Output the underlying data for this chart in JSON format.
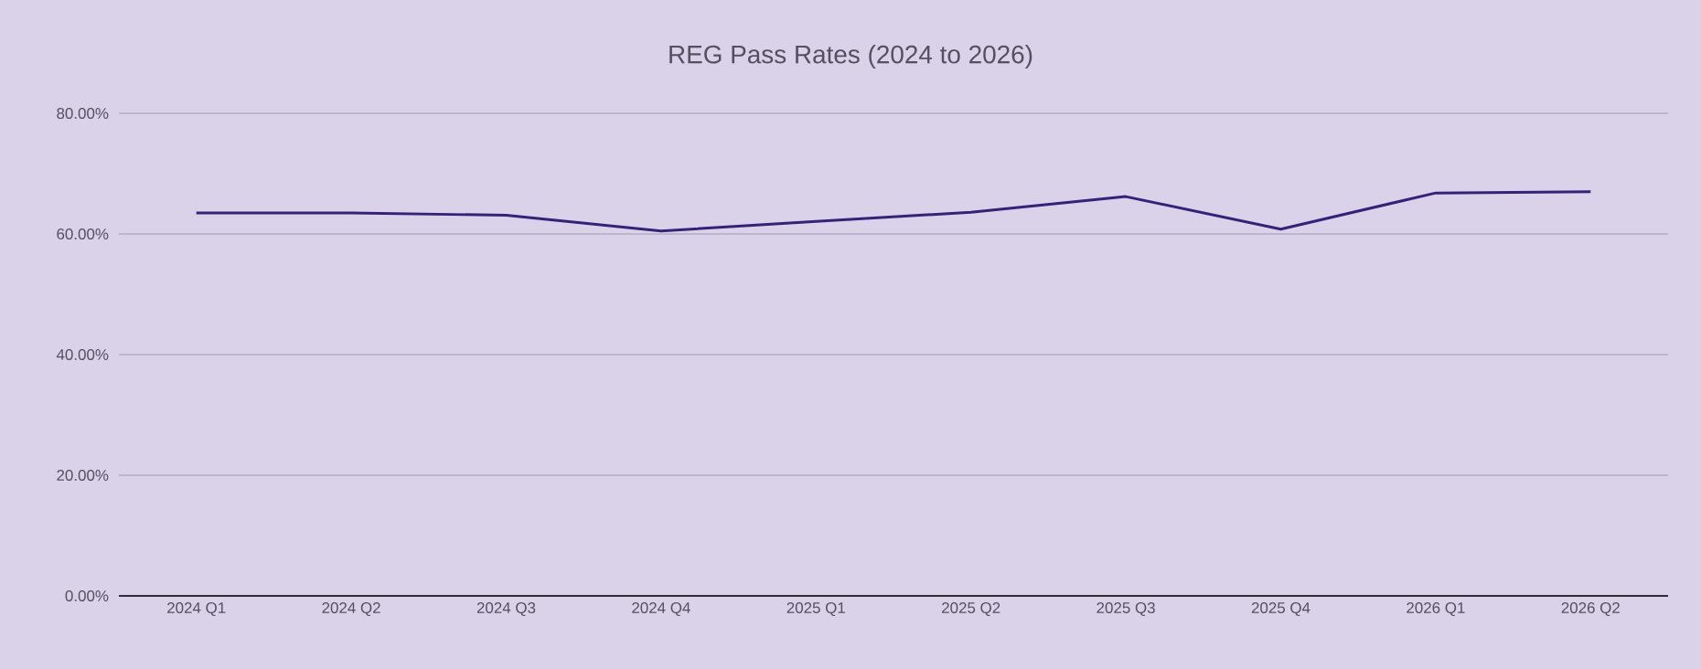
{
  "chart_data": {
    "type": "line",
    "title": "REG Pass Rates (2024 to 2026)",
    "categories": [
      "2024 Q1",
      "2024 Q2",
      "2024 Q3",
      "2024 Q4",
      "2025 Q1",
      "2025 Q2",
      "2025 Q3",
      "2025 Q4",
      "2026 Q1",
      "2026 Q2"
    ],
    "series": [
      {
        "color": "#36217a",
        "values": [
          63.5,
          63.5,
          63.1,
          60.5,
          62.1,
          63.6,
          66.2,
          60.8,
          66.8,
          67.0
        ]
      }
    ],
    "ylim": [
      0,
      80
    ],
    "yticks": [
      {
        "value": 0,
        "label": "0.00%"
      },
      {
        "value": 20,
        "label": "20.00%"
      },
      {
        "value": 40,
        "label": "40.00%"
      },
      {
        "value": 60,
        "label": "60.00%"
      },
      {
        "value": 80,
        "label": "80.00%"
      }
    ],
    "grid": "y",
    "marker": "none",
    "line_style": "solid"
  }
}
